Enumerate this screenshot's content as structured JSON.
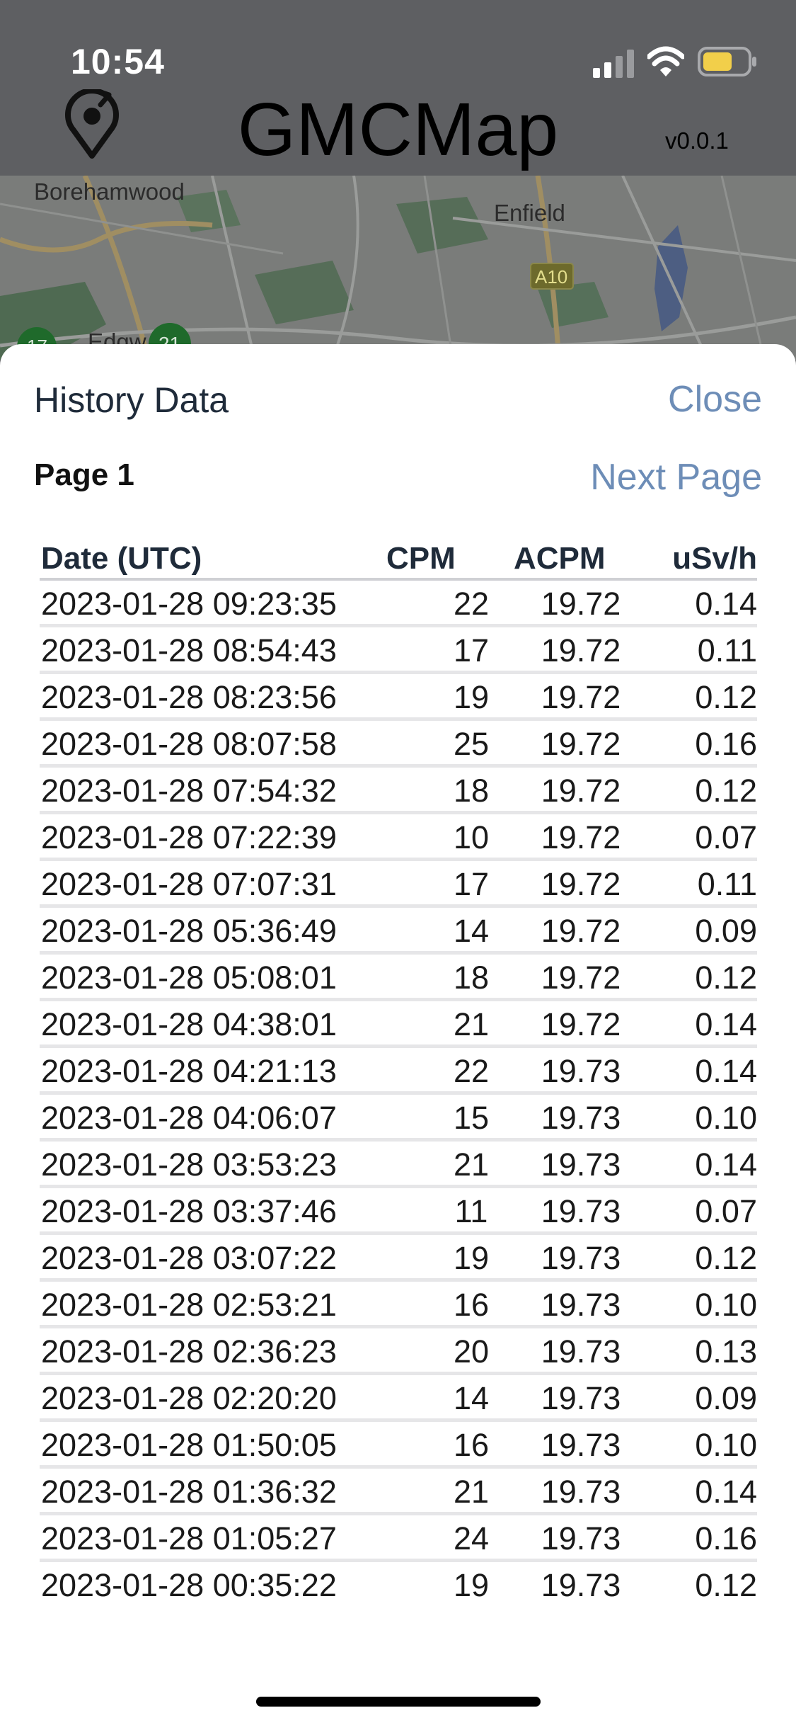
{
  "status_bar": {
    "time": "10:54"
  },
  "header": {
    "title": "GMCMap",
    "version": "v0.0.1"
  },
  "map": {
    "labels": [
      "Borehamwood",
      "Enfield",
      "A10",
      "Edgw",
      "17",
      "21"
    ]
  },
  "sheet": {
    "title": "History Data",
    "close_label": "Close",
    "page_label": "Page 1",
    "next_page_label": "Next Page",
    "columns": [
      "Date (UTC)",
      "CPM",
      "ACPM",
      "uSv/h"
    ],
    "rows": [
      [
        "2023-01-28 09:23:35",
        "22",
        "19.72",
        "0.14"
      ],
      [
        "2023-01-28 08:54:43",
        "17",
        "19.72",
        "0.11"
      ],
      [
        "2023-01-28 08:23:56",
        "19",
        "19.72",
        "0.12"
      ],
      [
        "2023-01-28 08:07:58",
        "25",
        "19.72",
        "0.16"
      ],
      [
        "2023-01-28 07:54:32",
        "18",
        "19.72",
        "0.12"
      ],
      [
        "2023-01-28 07:22:39",
        "10",
        "19.72",
        "0.07"
      ],
      [
        "2023-01-28 07:07:31",
        "17",
        "19.72",
        "0.11"
      ],
      [
        "2023-01-28 05:36:49",
        "14",
        "19.72",
        "0.09"
      ],
      [
        "2023-01-28 05:08:01",
        "18",
        "19.72",
        "0.12"
      ],
      [
        "2023-01-28 04:38:01",
        "21",
        "19.72",
        "0.14"
      ],
      [
        "2023-01-28 04:21:13",
        "22",
        "19.73",
        "0.14"
      ],
      [
        "2023-01-28 04:06:07",
        "15",
        "19.73",
        "0.10"
      ],
      [
        "2023-01-28 03:53:23",
        "21",
        "19.73",
        "0.14"
      ],
      [
        "2023-01-28 03:37:46",
        "11",
        "19.73",
        "0.07"
      ],
      [
        "2023-01-28 03:07:22",
        "19",
        "19.73",
        "0.12"
      ],
      [
        "2023-01-28 02:53:21",
        "16",
        "19.73",
        "0.10"
      ],
      [
        "2023-01-28 02:36:23",
        "20",
        "19.73",
        "0.13"
      ],
      [
        "2023-01-28 02:20:20",
        "14",
        "19.73",
        "0.09"
      ],
      [
        "2023-01-28 01:50:05",
        "16",
        "19.73",
        "0.10"
      ],
      [
        "2023-01-28 01:36:32",
        "21",
        "19.73",
        "0.14"
      ],
      [
        "2023-01-28 01:05:27",
        "24",
        "19.73",
        "0.16"
      ],
      [
        "2023-01-28 00:35:22",
        "19",
        "19.73",
        "0.12"
      ]
    ]
  },
  "colors": {
    "accent": "#6d8db7",
    "overlay": "#5e5f62",
    "battery": "#f2cf4a"
  },
  "icons": [
    "signal-icon",
    "wifi-icon",
    "battery-icon",
    "recenter-location-icon"
  ]
}
